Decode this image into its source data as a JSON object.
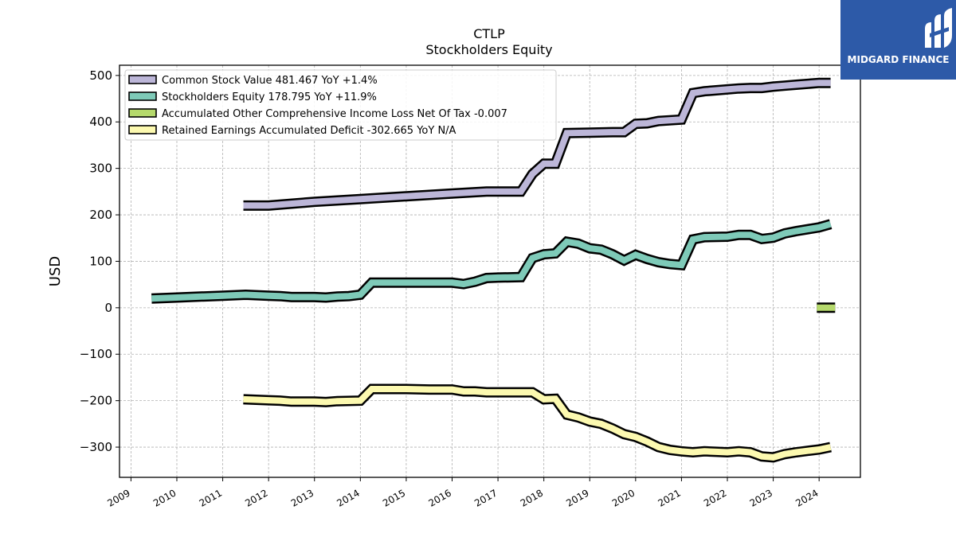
{
  "brand": {
    "name": "MIDGARD FINANCE",
    "logo_icon": "midgard-logo-icon",
    "color": "#2d5aa8"
  },
  "chart_data": {
    "type": "line",
    "title": "CTLP",
    "subtitle": "Stockholders  Equity",
    "xlabel": "",
    "ylabel": "USD",
    "xlim": [
      2008.75,
      2024.9
    ],
    "ylim": [
      -365,
      522
    ],
    "x_ticks": [
      "2009",
      "2010",
      "2011",
      "2012",
      "2013",
      "2014",
      "2015",
      "2016",
      "2017",
      "2018",
      "2019",
      "2020",
      "2021",
      "2022",
      "2023",
      "2024"
    ],
    "y_ticks": [
      500,
      400,
      300,
      200,
      100,
      0,
      -100,
      -200,
      -300
    ],
    "y_tick_labels": [
      "500",
      "400",
      "300",
      "200",
      "100",
      "0",
      "−100",
      "−200",
      "−300"
    ],
    "grid": true,
    "legend_position": "top-left",
    "series": [
      {
        "name": "Common Stock Value  481.467 YoY +1.4%",
        "color": "#bcb6d8",
        "points": [
          [
            2011.45,
            220
          ],
          [
            2012.0,
            220
          ],
          [
            2013.0,
            228
          ],
          [
            2014.0,
            234
          ],
          [
            2015.0,
            240
          ],
          [
            2016.0,
            246
          ],
          [
            2016.75,
            250
          ],
          [
            2017.5,
            250
          ],
          [
            2017.75,
            288
          ],
          [
            2018.0,
            310
          ],
          [
            2018.25,
            310
          ],
          [
            2018.5,
            376
          ],
          [
            2019.0,
            377
          ],
          [
            2019.5,
            378
          ],
          [
            2019.75,
            378
          ],
          [
            2020.0,
            396
          ],
          [
            2020.25,
            397
          ],
          [
            2020.5,
            402
          ],
          [
            2021.0,
            405
          ],
          [
            2021.25,
            462
          ],
          [
            2021.5,
            466
          ],
          [
            2022.0,
            470
          ],
          [
            2022.25,
            472
          ],
          [
            2022.5,
            473
          ],
          [
            2022.75,
            473
          ],
          [
            2023.0,
            476
          ],
          [
            2023.25,
            478
          ],
          [
            2023.5,
            480
          ],
          [
            2024.0,
            484
          ],
          [
            2024.25,
            484
          ]
        ]
      },
      {
        "name": "Stockholders Equity  178.795 YoY +11.9%",
        "color": "#7ecab8",
        "points": [
          [
            2009.45,
            20
          ],
          [
            2010.0,
            22
          ],
          [
            2011.0,
            26
          ],
          [
            2011.5,
            28
          ],
          [
            2012.0,
            26
          ],
          [
            2012.25,
            25
          ],
          [
            2012.5,
            23
          ],
          [
            2013.0,
            23
          ],
          [
            2013.25,
            22
          ],
          [
            2013.5,
            24
          ],
          [
            2013.75,
            25
          ],
          [
            2014.0,
            28
          ],
          [
            2014.25,
            54
          ],
          [
            2015.0,
            54
          ],
          [
            2015.5,
            54
          ],
          [
            2016.0,
            54
          ],
          [
            2016.25,
            51
          ],
          [
            2016.5,
            56
          ],
          [
            2016.75,
            64
          ],
          [
            2017.0,
            65
          ],
          [
            2017.5,
            66
          ],
          [
            2017.75,
            107
          ],
          [
            2018.0,
            115
          ],
          [
            2018.25,
            117
          ],
          [
            2018.5,
            142
          ],
          [
            2018.75,
            138
          ],
          [
            2019.0,
            128
          ],
          [
            2019.25,
            125
          ],
          [
            2019.5,
            115
          ],
          [
            2019.75,
            102
          ],
          [
            2020.0,
            114
          ],
          [
            2020.25,
            105
          ],
          [
            2020.5,
            98
          ],
          [
            2020.75,
            94
          ],
          [
            2021.0,
            92
          ],
          [
            2021.25,
            147
          ],
          [
            2021.5,
            152
          ],
          [
            2022.0,
            153
          ],
          [
            2022.25,
            157
          ],
          [
            2022.5,
            157
          ],
          [
            2022.75,
            148
          ],
          [
            2023.0,
            151
          ],
          [
            2023.25,
            160
          ],
          [
            2023.5,
            165
          ],
          [
            2024.0,
            173
          ],
          [
            2024.25,
            180
          ]
        ]
      },
      {
        "name": "Accumulated Other Comprehensive Income Loss Net Of Tax  -0.007",
        "color": "#b5d96c",
        "points": [
          [
            2023.95,
            0
          ],
          [
            2024.35,
            0
          ]
        ]
      },
      {
        "name": "Retained Earnings Accumulated Deficit  -302.665 YoY N/A",
        "color": "#fcf9b0",
        "points": [
          [
            2011.45,
            -197
          ],
          [
            2012.0,
            -199
          ],
          [
            2012.25,
            -200
          ],
          [
            2012.5,
            -202
          ],
          [
            2013.0,
            -202
          ],
          [
            2013.25,
            -203
          ],
          [
            2013.5,
            -201
          ],
          [
            2014.0,
            -200
          ],
          [
            2014.25,
            -175
          ],
          [
            2015.0,
            -175
          ],
          [
            2015.5,
            -176
          ],
          [
            2016.0,
            -176
          ],
          [
            2016.25,
            -180
          ],
          [
            2016.5,
            -180
          ],
          [
            2016.75,
            -182
          ],
          [
            2017.0,
            -182
          ],
          [
            2017.5,
            -182
          ],
          [
            2017.75,
            -182
          ],
          [
            2018.0,
            -197
          ],
          [
            2018.25,
            -196
          ],
          [
            2018.5,
            -230
          ],
          [
            2018.75,
            -236
          ],
          [
            2019.0,
            -245
          ],
          [
            2019.25,
            -250
          ],
          [
            2019.5,
            -260
          ],
          [
            2019.75,
            -272
          ],
          [
            2020.0,
            -278
          ],
          [
            2020.25,
            -288
          ],
          [
            2020.5,
            -300
          ],
          [
            2020.75,
            -306
          ],
          [
            2021.0,
            -309
          ],
          [
            2021.25,
            -311
          ],
          [
            2021.5,
            -309
          ],
          [
            2021.75,
            -310
          ],
          [
            2022.0,
            -311
          ],
          [
            2022.25,
            -309
          ],
          [
            2022.5,
            -311
          ],
          [
            2022.75,
            -320
          ],
          [
            2023.0,
            -322
          ],
          [
            2023.25,
            -315
          ],
          [
            2023.5,
            -311
          ],
          [
            2023.75,
            -308
          ],
          [
            2024.0,
            -305
          ],
          [
            2024.25,
            -300
          ]
        ]
      }
    ]
  }
}
